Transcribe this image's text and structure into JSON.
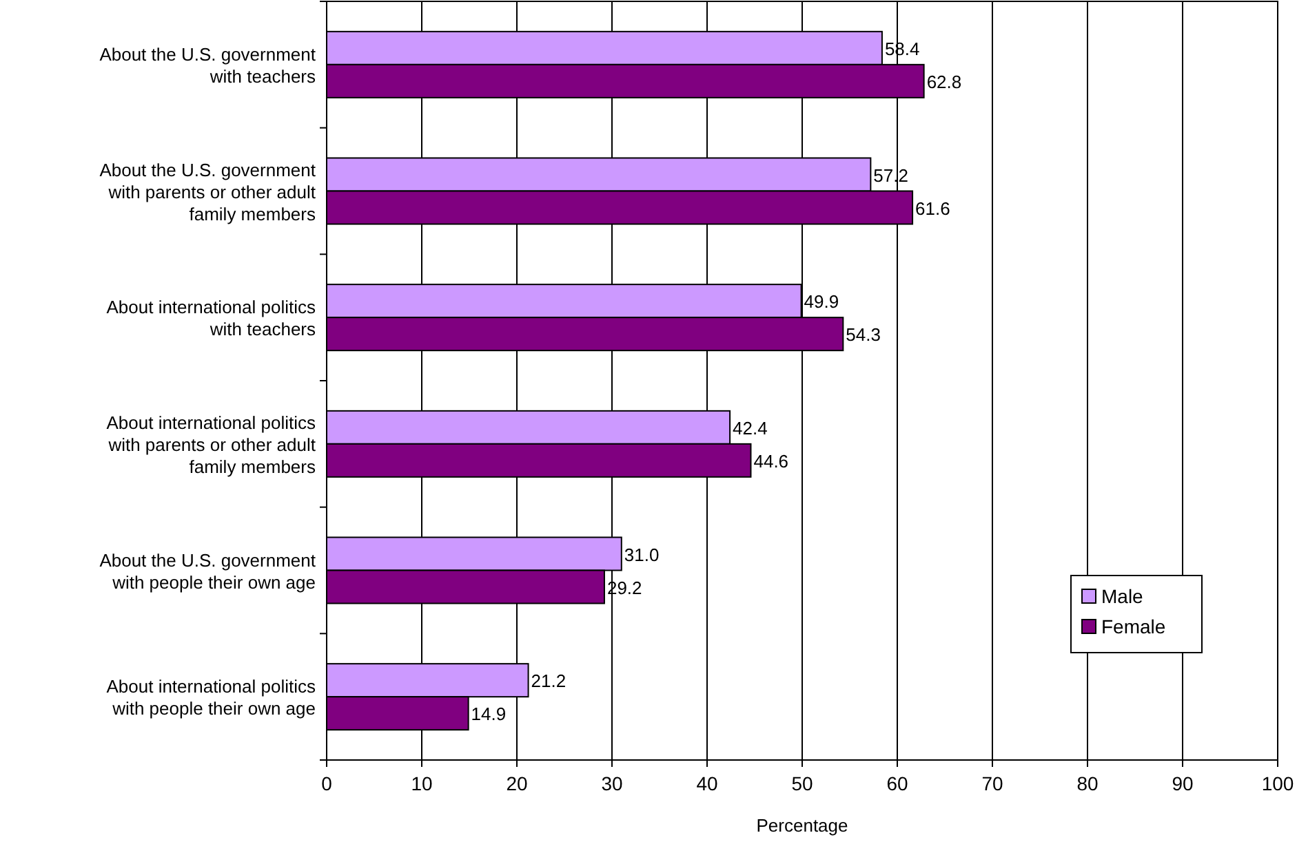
{
  "chart_data": {
    "type": "bar",
    "orientation": "horizontal",
    "xlabel": "Percentage",
    "categories": [
      "About the U.S. government with teachers",
      "About the U.S. government with parents or other adult family members",
      "About international politics with teachers",
      "About international politics with parents or other adult family members",
      "About the U.S. government with people their own age",
      "About international politics with people their own age"
    ],
    "series": [
      {
        "name": "Male",
        "color": "#cc99ff",
        "values": [
          58.4,
          57.2,
          49.9,
          42.4,
          31.0,
          21.2
        ],
        "value_labels": [
          "58.4",
          "57.2",
          "49.9",
          "42.4",
          "31.0",
          "21.2"
        ]
      },
      {
        "name": "Female",
        "color": "#800080",
        "values": [
          62.8,
          61.6,
          54.3,
          44.6,
          29.2,
          14.9
        ],
        "value_labels": [
          "62.8",
          "61.6",
          "54.3",
          "44.6",
          "29.2",
          "14.9"
        ]
      }
    ],
    "xlim": [
      0,
      100
    ],
    "xticks": [
      0,
      10,
      20,
      30,
      40,
      50,
      60,
      70,
      80,
      90,
      100
    ],
    "grid": "x",
    "legend": "bottom right"
  }
}
